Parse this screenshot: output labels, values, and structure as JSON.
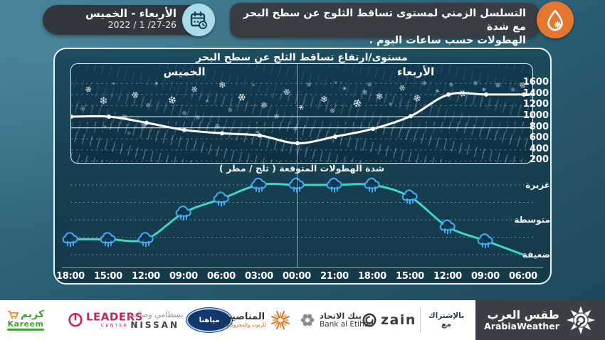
{
  "header": {
    "date_badge": {
      "days": "الأربعاء - الخميس",
      "date": "2022 / 1 /27-26"
    },
    "title_badge": {
      "line1": "التسلسل الزمني لمستوى تساقط الثلوج عن سطح البحر مع شدة",
      "line2": "الهطولات حسب ساعات اليوم ."
    }
  },
  "chart_data": [
    {
      "type": "line",
      "id": "snow-level-timeline",
      "title": "مستوى/ارتفاع تساقط الثلج عن سطح البحر",
      "day_labels": {
        "left_half": "الخميس",
        "right_half": "الأربعاء"
      },
      "x": [
        "18:00",
        "15:00",
        "12:00",
        "09:00",
        "06:00",
        "03:00",
        "00:00",
        "21:00",
        "18:00",
        "15:00",
        "12:00",
        "09:00",
        "06:00"
      ],
      "values": [
        1000,
        1000,
        890,
        760,
        700,
        660,
        520,
        640,
        780,
        1010,
        1400,
        1400,
        1400
      ],
      "y_ticks": [
        1600,
        1400,
        1200,
        1000,
        800,
        600,
        400,
        200
      ],
      "ylim": [
        200,
        1600
      ],
      "line_color": "#ffffff",
      "layout": "time flows right-to-left; Wednesday on right half, Thursday on left half; snowflakes above line, rain streaks below"
    },
    {
      "type": "line",
      "id": "precipitation-intensity",
      "title": "شدة الهطولات المتوقعة ( ثلج / مطر )",
      "x": [
        "18:00",
        "15:00",
        "12:00",
        "09:00",
        "06:00",
        "03:00",
        "00:00",
        "21:00",
        "18:00",
        "15:00",
        "12:00",
        "09:00",
        "06:00"
      ],
      "values_percent": [
        22,
        22,
        22,
        60,
        80,
        100,
        100,
        100,
        100,
        83,
        40,
        20,
        0
      ],
      "cloud_marker": [
        true,
        true,
        true,
        true,
        true,
        true,
        true,
        true,
        true,
        true,
        true,
        true,
        false
      ],
      "y_ticks": [
        {
          "label": "غزيرة",
          "value": 100
        },
        {
          "label": "متوسطة",
          "value": 50
        },
        {
          "label": "ضعيفة",
          "value": 0
        }
      ],
      "line_color": "#3bd8c8",
      "cloud_color": "#43a7f4",
      "grid": "5 dashed horizontal lines, legend labels on right"
    }
  ],
  "footer": {
    "partnership_label": "بالإشتراك مع",
    "sponsors": [
      {
        "id": "kareem",
        "text_ar": "كريم",
        "text_en": "Kareem"
      },
      {
        "id": "leaders",
        "text": "LEADERS",
        "sub": "CENTER"
      },
      {
        "id": "nissan",
        "text_ar": "بسطامي وصاحب",
        "text_en": "NISSAN"
      },
      {
        "id": "miyahuna",
        "text_ar": "مياهنا"
      },
      {
        "id": "manaseer",
        "text_ar": "المناصير",
        "sub_ar": "للزيوت والمحروقات"
      },
      {
        "id": "bank-al-etihad",
        "text_ar": "بنك الاتحاد",
        "text_en": "Bank al Etihad"
      },
      {
        "id": "zain",
        "text": "zain"
      }
    ],
    "brand": {
      "ar": "طقس العرب",
      "en": "ArabiaWeather"
    }
  },
  "colors": {
    "background_top": "#3f7a92",
    "background_bottom": "#1d4659",
    "panel": "#173f50",
    "badge": "#383d44",
    "accent_orange": "#e5772e",
    "snow_line": "#ffffff",
    "intensity_line": "#3bd8c8",
    "cloud_blue": "#43a7f4",
    "footer_bg": "#ffffff",
    "brand_bg": "#3b4046"
  }
}
